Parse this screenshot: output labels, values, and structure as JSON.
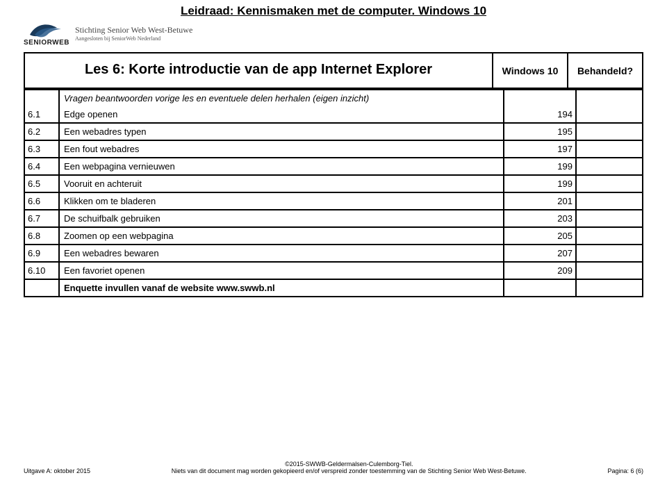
{
  "page_title": "Leidraad: Kennismaken met de computer. Windows 10",
  "logo": {
    "word": "SENIORWEB",
    "org_name": "Stichting Senior Web West-Betuwe",
    "org_sub": "Aangesloten bij SeniorWeb Nederland"
  },
  "header": {
    "lesson_title": "Les 6: Korte introductie van de app Internet Explorer",
    "os_label": "Windows 10",
    "done_label": "Behandeld?"
  },
  "intro_row": {
    "text": "Vragen beantwoorden vorige les en eventuele delen herhalen (eigen inzicht)"
  },
  "rows": [
    {
      "num": "6.1",
      "desc": "Edge openen",
      "page": "194"
    },
    {
      "num": "6.2",
      "desc": "Een webadres typen",
      "page": "195"
    },
    {
      "num": "6.3",
      "desc": "Een fout webadres",
      "page": "197"
    },
    {
      "num": "6.4",
      "desc": "Een webpagina vernieuwen",
      "page": "199"
    },
    {
      "num": "6.5",
      "desc": "Vooruit en achteruit",
      "page": "199"
    },
    {
      "num": "6.6",
      "desc": "Klikken om te bladeren",
      "page": "201"
    },
    {
      "num": "6.7",
      "desc": "De schuifbalk gebruiken",
      "page": "203"
    },
    {
      "num": "6.8",
      "desc": "Zoomen op een webpagina",
      "page": "205"
    },
    {
      "num": "6.9",
      "desc": "Een webadres bewaren",
      "page": "207"
    },
    {
      "num": "6.10",
      "desc": "Een favoriet openen",
      "page": "209"
    }
  ],
  "enquette": "Enquette invullen vanaf de website www.swwb.nl",
  "footer": {
    "left": "Uitgave A: oktober 2015",
    "center_line1": "©2015-SWWB-Geldermalsen-Culemborg-Tiel.",
    "center_line2": "Niets van dit document mag worden gekopieerd en/of verspreid zonder toestemming van de Stichting Senior Web West-Betuwe.",
    "right": "Pagina: 6 (6)"
  }
}
